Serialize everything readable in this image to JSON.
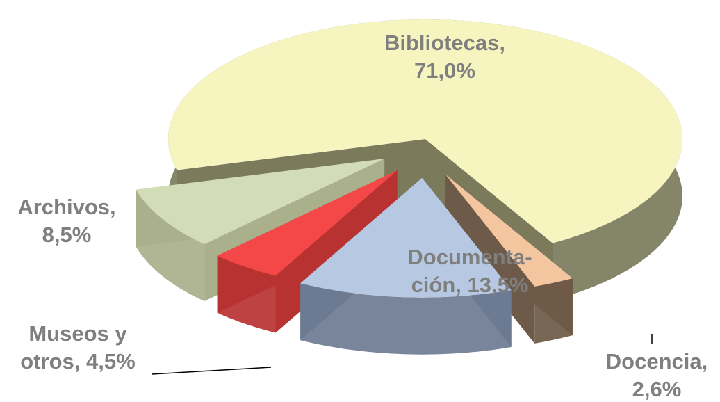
{
  "chart_data": {
    "type": "pie3d",
    "labels": [
      [
        "Bibliotecas,",
        "71,0%"
      ],
      [
        "Docencia,",
        "2,6%"
      ],
      [
        "Documenta-",
        "ción, 13,5%"
      ],
      [
        "Museos y",
        "otros, 4,5%"
      ],
      [
        "Archivos,",
        "8,5%"
      ]
    ],
    "values": [
      71.0,
      2.6,
      13.5,
      4.5,
      8.5
    ],
    "colors": [
      "#f6f4bf",
      "#f4c6a0",
      "#b7c9e2",
      "#f44848",
      "#d2dcb6"
    ],
    "side_colors": [
      "#7b7b5c",
      "#6e5a48",
      "#6c7b92",
      "#b83232",
      "#a9b08b"
    ]
  }
}
